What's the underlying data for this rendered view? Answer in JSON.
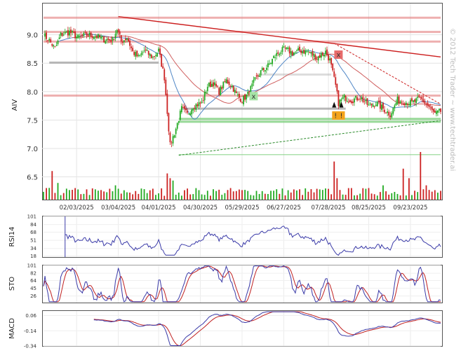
{
  "watermark": "© 2012 Tech Trader ~ www.techtrader.ai",
  "colors": {
    "up": "#22aa22",
    "down": "#cc2222",
    "resistance": "#e07070",
    "support": "#7ecf7e",
    "ma_fast": "#4f86c6",
    "ma_slow": "#d06060",
    "indicator_line": "#3a3aa8",
    "indicator_signal": "#c02020"
  },
  "chart_data": [
    {
      "type": "candlestick",
      "ylabel": "AIV",
      "ylim": [
        6.1,
        9.55
      ],
      "yticks": [
        "9.0",
        "8.5",
        "8.0",
        "7.5",
        "7.0",
        "6.5"
      ],
      "ytick_values": [
        9.0,
        8.5,
        8.0,
        7.5,
        7.0,
        6.5
      ],
      "xtick_labels": [
        "02/03/2025",
        "03/04/2025",
        "04/01/2025",
        "04/30/2025",
        "05/29/2025",
        "06/27/2025",
        "07/28/2025",
        "08/25/2025",
        "09/23/2025"
      ],
      "xtick_days": [
        23,
        52,
        80,
        109,
        138,
        167,
        198,
        226,
        255
      ],
      "period_days": 276,
      "anchors": [
        {
          "d": 0,
          "p": 9.0
        },
        {
          "d": 4,
          "p": 8.9
        },
        {
          "d": 8,
          "p": 8.75
        },
        {
          "d": 12,
          "p": 9.0
        },
        {
          "d": 18,
          "p": 9.05
        },
        {
          "d": 24,
          "p": 8.95
        },
        {
          "d": 30,
          "p": 9.0
        },
        {
          "d": 36,
          "p": 8.98
        },
        {
          "d": 42,
          "p": 8.92
        },
        {
          "d": 48,
          "p": 8.9
        },
        {
          "d": 51,
          "p": 9.1
        },
        {
          "d": 54,
          "p": 8.88
        },
        {
          "d": 58,
          "p": 8.95
        },
        {
          "d": 62,
          "p": 8.7
        },
        {
          "d": 66,
          "p": 8.6
        },
        {
          "d": 70,
          "p": 8.72
        },
        {
          "d": 76,
          "p": 8.6
        },
        {
          "d": 80,
          "p": 8.72
        },
        {
          "d": 84,
          "p": 8.25
        },
        {
          "d": 88,
          "p": 7.05
        },
        {
          "d": 92,
          "p": 7.35
        },
        {
          "d": 96,
          "p": 7.7
        },
        {
          "d": 100,
          "p": 7.6
        },
        {
          "d": 104,
          "p": 7.75
        },
        {
          "d": 110,
          "p": 7.8
        },
        {
          "d": 114,
          "p": 8.1
        },
        {
          "d": 118,
          "p": 8.15
        },
        {
          "d": 122,
          "p": 8.0
        },
        {
          "d": 127,
          "p": 8.2
        },
        {
          "d": 131,
          "p": 8.1
        },
        {
          "d": 134,
          "p": 7.95
        },
        {
          "d": 138,
          "p": 7.85
        },
        {
          "d": 142,
          "p": 7.95
        },
        {
          "d": 147,
          "p": 8.2
        },
        {
          "d": 151,
          "p": 8.35
        },
        {
          "d": 156,
          "p": 8.45
        },
        {
          "d": 160,
          "p": 8.6
        },
        {
          "d": 164,
          "p": 8.7
        },
        {
          "d": 168,
          "p": 8.75
        },
        {
          "d": 173,
          "p": 8.68
        },
        {
          "d": 178,
          "p": 8.72
        },
        {
          "d": 184,
          "p": 8.7
        },
        {
          "d": 190,
          "p": 8.6
        },
        {
          "d": 196,
          "p": 8.7
        },
        {
          "d": 199,
          "p": 8.55
        },
        {
          "d": 203,
          "p": 8.1
        },
        {
          "d": 205,
          "p": 7.8
        },
        {
          "d": 209,
          "p": 7.9
        },
        {
          "d": 214,
          "p": 7.85
        },
        {
          "d": 220,
          "p": 7.9
        },
        {
          "d": 226,
          "p": 7.75
        },
        {
          "d": 231,
          "p": 7.8
        },
        {
          "d": 236,
          "p": 7.7
        },
        {
          "d": 241,
          "p": 7.6
        },
        {
          "d": 246,
          "p": 7.85
        },
        {
          "d": 251,
          "p": 7.82
        },
        {
          "d": 256,
          "p": 7.8
        },
        {
          "d": 262,
          "p": 7.88
        },
        {
          "d": 267,
          "p": 7.75
        },
        {
          "d": 272,
          "p": 7.6
        },
        {
          "d": 276,
          "p": 7.65
        }
      ],
      "volume_spikes": [
        {
          "d": 7,
          "v": 0.6
        },
        {
          "d": 10,
          "v": 0.35
        },
        {
          "d": 51,
          "v": 0.3
        },
        {
          "d": 86,
          "v": 0.55
        },
        {
          "d": 88,
          "v": 0.45
        },
        {
          "d": 91,
          "v": 0.4
        },
        {
          "d": 202,
          "v": 0.8
        },
        {
          "d": 203,
          "v": 0.55
        },
        {
          "d": 205,
          "v": 0.45
        },
        {
          "d": 236,
          "v": 0.3
        },
        {
          "d": 250,
          "v": 0.65
        },
        {
          "d": 254,
          "v": 0.45
        },
        {
          "d": 262,
          "v": 1.0
        },
        {
          "d": 266,
          "v": 0.3
        }
      ],
      "resistance_levels": [
        9.3,
        9.05,
        8.88,
        7.93
      ],
      "support_levels": [
        7.52,
        7.47,
        6.88
      ],
      "gray_levels": [
        {
          "y": 8.51,
          "d0": 4,
          "d1": 80
        },
        {
          "y": 7.7,
          "d0": 96,
          "d1": 210
        },
        {
          "y": 8.3,
          "d0": 150,
          "d1": 200
        }
      ],
      "trendline_down": {
        "d0": 52,
        "p0": 9.32,
        "d1": 276,
        "p1": 8.61
      },
      "trendline_down_dashed": {
        "d0": 202,
        "p0": 8.85,
        "d1": 276,
        "p1": 7.78
      },
      "trendline_up_dashed": {
        "d0": 94,
        "p0": 6.88,
        "d1": 276,
        "p1": 7.49
      },
      "markers": [
        {
          "type": "x",
          "d": 146,
          "p": 7.92,
          "color": "green",
          "text": "x"
        },
        {
          "type": "x",
          "d": 205,
          "p": 8.65,
          "color": "red",
          "text": "x"
        },
        {
          "type": "alert",
          "d": 203,
          "p": 7.58,
          "text": "!"
        },
        {
          "type": "alert",
          "d": 207,
          "p": 7.58,
          "text": "!"
        }
      ]
    },
    {
      "type": "line",
      "ylabel": "RSI14",
      "ylim": [
        16,
        101
      ],
      "yticks": [
        "101",
        "84",
        "68",
        "51",
        "34",
        "18"
      ],
      "ytick_values": [
        101,
        84,
        68,
        51,
        34,
        18
      ]
    },
    {
      "type": "line",
      "ylabel": "STO",
      "ylim": [
        10,
        101
      ],
      "yticks": [
        "101",
        "82",
        "64",
        "45",
        "26"
      ],
      "ytick_values": [
        101,
        82,
        64,
        45,
        26
      ]
    },
    {
      "type": "line",
      "ylabel": "MACD",
      "ylim": [
        -0.34,
        0.12
      ],
      "yticks": [
        "0.06",
        "-0.14",
        "-0.34"
      ],
      "ytick_values": [
        0.06,
        -0.14,
        -0.34
      ]
    }
  ]
}
